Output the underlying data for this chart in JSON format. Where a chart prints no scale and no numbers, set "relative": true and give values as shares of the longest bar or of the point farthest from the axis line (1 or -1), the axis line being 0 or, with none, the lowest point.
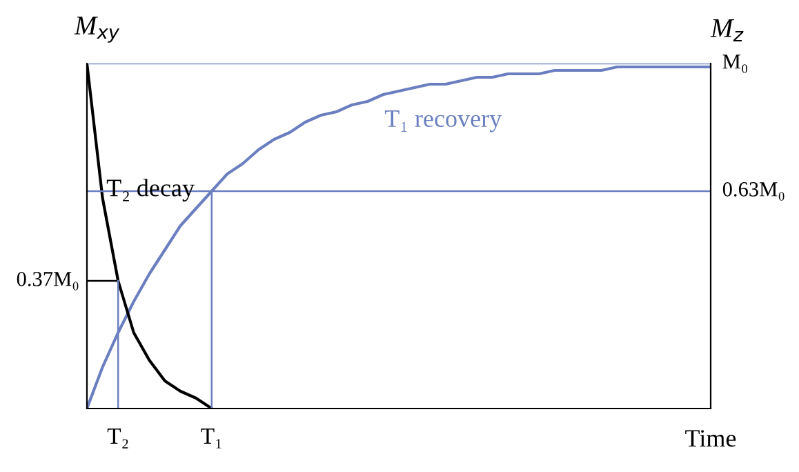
{
  "chart_data": {
    "type": "line",
    "xlabel": "Time",
    "ylabel": "M$_{xy}$",
    "y2label": "M$_{z}$",
    "relative": true,
    "categories": [
      null,
      null,
      "T₂",
      null,
      null,
      null,
      null,
      null,
      "T₁",
      null,
      null,
      null,
      null,
      null,
      null,
      null,
      null,
      null,
      null,
      null,
      null,
      null,
      null,
      null,
      null,
      null,
      null,
      null,
      null,
      null,
      null,
      null,
      null,
      null,
      null,
      null,
      null,
      null,
      null,
      null,
      null
    ],
    "series": [
      {
        "name": "T₁ recovery",
        "color": "#6b7fc0",
        "values": [
          0,
          0.12,
          0.22,
          0.31,
          0.39,
          0.46,
          0.53,
          0.58,
          0.63,
          0.68,
          0.71,
          0.75,
          0.78,
          0.8,
          0.83,
          0.85,
          0.86,
          0.88,
          0.89,
          0.91,
          0.92,
          0.93,
          0.94,
          0.94,
          0.95,
          0.96,
          0.96,
          0.97,
          0.97,
          0.97,
          0.98,
          0.98,
          0.98,
          0.98,
          0.99,
          0.99,
          0.99,
          0.99,
          0.99,
          0.99,
          0.99
        ]
      },
      {
        "name": "T₂ decay",
        "color": "#000000",
        "values": [
          1,
          0.61,
          0.37,
          0.22,
          0.14,
          0.08,
          0.05,
          0.03,
          0,
          null,
          null,
          null,
          null,
          null,
          null,
          null,
          null,
          null,
          null,
          null,
          null,
          null,
          null,
          null,
          null,
          null,
          null,
          null,
          null,
          null,
          null,
          null,
          null,
          null,
          null,
          null,
          null,
          null,
          null,
          null,
          null
        ]
      }
    ],
    "ref_lines": [
      {
        "axis": "y",
        "value": 1,
        "color": "#6b7fc0",
        "label": "M₀"
      },
      {
        "axis": "y",
        "value": 0.63,
        "color": "#6b7fc0",
        "label": "0.63M₀"
      },
      {
        "axis": "y",
        "value": 0.37,
        "color": "#000000",
        "label": "0.37M₀"
      },
      {
        "axis": "x",
        "value": "T₁",
        "color": "#6b7fc0"
      },
      {
        "axis": "x",
        "value": "T₂",
        "color": "#6b7fc0"
      }
    ],
    "grid": false,
    "legend": false,
    "marker": "none",
    "line_style": "solid"
  }
}
